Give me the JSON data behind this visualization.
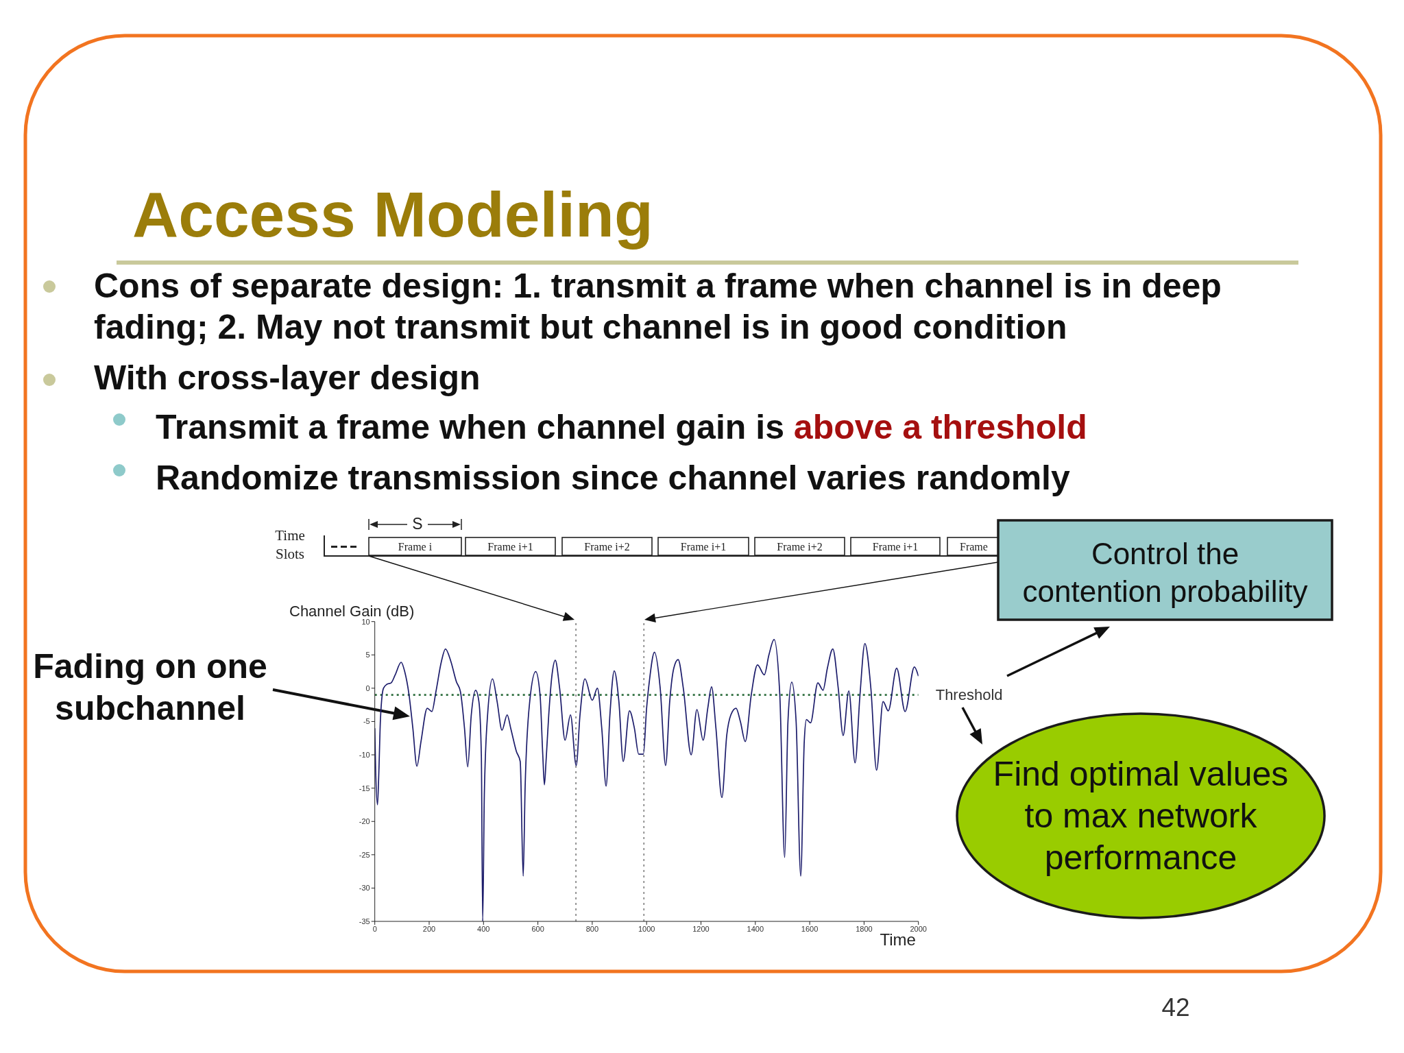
{
  "chart_data": {
    "type": "line",
    "title": "Access Modeling",
    "xlabel": "Time",
    "ylabel": "Channel Gain (dB)",
    "x": [
      0,
      3,
      10,
      15,
      21,
      32,
      45,
      60,
      75,
      97,
      110,
      126,
      140,
      155,
      170,
      193,
      210,
      225,
      245,
      260,
      280,
      300,
      315,
      330,
      342,
      355,
      371,
      383,
      392,
      397,
      403,
      415,
      433,
      450,
      468,
      487,
      500,
      521,
      535,
      546,
      553,
      570,
      592,
      608,
      618,
      624,
      630,
      640,
      652,
      664,
      680,
      700,
      720,
      741,
      755,
      773,
      800,
      819,
      835,
      851,
      865,
      881,
      898,
      914,
      937,
      955,
      971,
      988,
      1000,
      1010,
      1029,
      1050,
      1070,
      1085,
      1100,
      1116,
      1135,
      1164,
      1185,
      1208,
      1225,
      1239,
      1255,
      1277,
      1295,
      1310,
      1329,
      1345,
      1363,
      1385,
      1408,
      1433,
      1450,
      1469,
      1490,
      1508,
      1520,
      1534,
      1550,
      1567,
      1580,
      1588,
      1603,
      1630,
      1649,
      1665,
      1685,
      1705,
      1723,
      1744,
      1767,
      1785,
      1803,
      1825,
      1846,
      1870,
      1889,
      1920,
      1951,
      1985,
      2000
    ],
    "series": [
      {
        "color": "#1c1c6b",
        "values": [
          -6,
          -12,
          -17.5,
          -12.5,
          -4.5,
          0,
          0.6,
          0.8,
          2,
          3.9,
          2.5,
          -1,
          -6,
          -11.7,
          -8,
          -3,
          -3.5,
          -0.5,
          4,
          5.9,
          4,
          1,
          -0.5,
          -6,
          -11.8,
          -4,
          -0.3,
          -2,
          -10,
          -35,
          -16,
          -4,
          1.4,
          -2,
          -6.3,
          -4,
          -6,
          -9.5,
          -11,
          -28.2,
          -15,
          -2,
          2.5,
          -1,
          -10,
          -14.5,
          -11,
          -4,
          2,
          4.2,
          0,
          -7.8,
          -4,
          -11.6,
          -4,
          1.4,
          -1.8,
          0,
          -6,
          -14.7,
          -4,
          2.6,
          -2,
          -11,
          -3.4,
          -6,
          -9.9,
          -9.9,
          -3,
          1,
          5.4,
          0,
          -11.6,
          -2,
          3,
          4.3,
          0,
          -10,
          -3.2,
          -7.8,
          -3,
          0.2,
          -6,
          -16.4,
          -7,
          -4,
          -3,
          -5,
          -8,
          -1,
          3.5,
          2,
          5,
          7.3,
          -1,
          -25.4,
          -5,
          0.9,
          -5,
          -28.2,
          -8,
          -4.7,
          -5.2,
          0.8,
          -0.3,
          3,
          5.9,
          0,
          -7.1,
          -0.4,
          -11.2,
          -1,
          6.7,
          0,
          -12.3,
          -2,
          -3.4,
          3,
          -3.5,
          3.2,
          1.8
        ]
      }
    ],
    "xlim": [
      0,
      2000
    ],
    "xticks": [
      0,
      200,
      400,
      600,
      800,
      1000,
      1200,
      1400,
      1600,
      1800,
      2000
    ],
    "ylim": [
      -35,
      10
    ],
    "yticks": [
      -35,
      -30,
      -25,
      -20,
      -15,
      -10,
      -5,
      0,
      5,
      10
    ],
    "ref_lines": [
      {
        "axis": "y",
        "value": -1,
        "label": "Threshold",
        "color": "#2e6e3e",
        "line_style": "dotted"
      },
      {
        "axis": "x",
        "value": 740,
        "color": "#8a8a8a",
        "line_style": "dotted"
      },
      {
        "axis": "x",
        "value": 990,
        "color": "#8a8a8a",
        "line_style": "dotted"
      }
    ],
    "annotations": [
      "Cons of separate design: 1. transmit a frame when channel is in deep fading; 2. May not transmit  but channel is in good condition",
      "With cross-layer design",
      "Transmit a frame when channel gain is",
      "above a threshold",
      "Randomize transmission since channel varies randomly",
      "Time Slots",
      "S",
      "Frame i",
      "Frame i+1",
      "Frame i+2",
      "Frame i+1",
      "Frame i+2",
      "Frame i+1",
      "Frame",
      "Control the contention probability",
      "Fading on one subchannel",
      "Find optimal values to max network performance",
      "42"
    ]
  }
}
